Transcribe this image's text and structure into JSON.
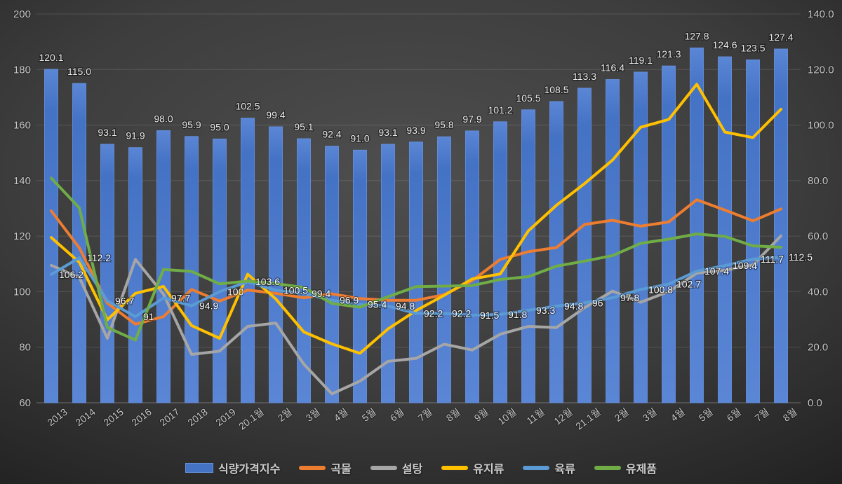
{
  "chart_data": {
    "type": "bar",
    "subtype": "combo-bar-line",
    "title": "",
    "grid": "horizontal",
    "legend_position": "bottom",
    "categories": [
      "2013",
      "2014",
      "2015",
      "2016",
      "2017",
      "2018",
      "2019",
      "20.1월",
      "2월",
      "3월",
      "4월",
      "5월",
      "6월",
      "7월",
      "8월",
      "9월",
      "10월",
      "11월",
      "12월",
      "21.1월",
      "2월",
      "3월",
      "4월",
      "5월",
      "6월",
      "7월",
      "8월"
    ],
    "left_axis": {
      "min": 60,
      "max": 200,
      "step": 20,
      "ticks": [
        "200",
        "180",
        "160",
        "140",
        "120",
        "100",
        "80",
        "60"
      ]
    },
    "right_axis": {
      "min": 0,
      "max": 140,
      "step": 20,
      "ticks": [
        "140.0",
        "120.0",
        "100.0",
        "80.0",
        "60.0",
        "40.0",
        "20.0",
        "0.0"
      ]
    },
    "series": [
      {
        "id": "food-price-index",
        "name": "식량가격지수",
        "kind": "bar",
        "axis": "right",
        "color": "#4472C4",
        "color_light": "#5b86d6",
        "edge": "#6490dd",
        "values": [
          120.1,
          115.0,
          93.1,
          91.9,
          98.0,
          95.9,
          95.0,
          102.5,
          99.4,
          95.1,
          92.4,
          91.0,
          93.1,
          93.9,
          95.8,
          97.9,
          101.2,
          105.5,
          108.5,
          113.3,
          116.4,
          119.1,
          121.3,
          127.8,
          124.6,
          123.5,
          127.4
        ],
        "labels": [
          "120.1",
          "115.0",
          "93.1",
          "91.9",
          "98.0",
          "95.9",
          "95.0",
          "102.5",
          "99.4",
          "95.1",
          "92.4",
          "91.0",
          "93.1",
          "93.9",
          "95.8",
          "97.9",
          "101.2",
          "105.5",
          "108.5",
          "113.3",
          "116.4",
          "119.1",
          "121.3",
          "127.8",
          "124.6",
          "123.5",
          "127.4"
        ]
      },
      {
        "id": "grains",
        "name": "곡물",
        "kind": "line",
        "axis": "left",
        "color": "#ED7D31",
        "values": [
          129.1,
          115.8,
          95.9,
          88.3,
          91.0,
          100.8,
          96.6,
          100.6,
          99.4,
          97.8,
          99.2,
          97.5,
          96.9,
          96.9,
          98.9,
          104.0,
          111.6,
          114.4,
          115.9,
          124.2,
          125.7,
          123.6,
          125.1,
          133.1,
          129.4,
          125.5,
          129.8
        ]
      },
      {
        "id": "sugar",
        "name": "설탕",
        "kind": "line",
        "axis": "left",
        "color": "#A6A6A6",
        "values": [
          109.5,
          105.2,
          83.2,
          111.6,
          99.1,
          77.4,
          78.6,
          87.5,
          88.7,
          73.9,
          63.2,
          67.8,
          74.9,
          76.0,
          81.1,
          79.0,
          84.7,
          87.5,
          87.1,
          94.2,
          100.2,
          96.2,
          100.0,
          106.7,
          107.7,
          109.6,
          120.1
        ]
      },
      {
        "id": "oils",
        "name": "유지류",
        "kind": "line",
        "axis": "left",
        "color": "#FFC000",
        "values": [
          119.5,
          110.6,
          89.9,
          99.4,
          101.9,
          87.8,
          83.2,
          106.3,
          97.4,
          85.5,
          81.2,
          77.8,
          86.6,
          93.2,
          98.7,
          104.6,
          106.4,
          121.9,
          131.1,
          138.9,
          147.4,
          159.2,
          162.0,
          174.7,
          157.5,
          155.5,
          165.7
        ]
      },
      {
        "id": "meat",
        "name": "육류",
        "kind": "line",
        "axis": "left",
        "color": "#5B9BD5",
        "values": [
          106.2,
          112.2,
          96.7,
          91,
          97.7,
          94.9,
          100,
          103.6,
          100.5,
          99.4,
          96.9,
          95.4,
          94.8,
          92.2,
          92.2,
          91.5,
          91.8,
          93.3,
          94.8,
          96,
          97.8,
          100.8,
          102.7,
          107.4,
          109.4,
          111.7,
          112.5
        ],
        "labels": [
          "106.2",
          "112.2",
          "96.7",
          "91",
          "97.7",
          "94.9",
          "100",
          "103.6",
          "100.5",
          "99.4",
          "96.9",
          "95.4",
          "94.8",
          "92.2",
          "92.2",
          "91.5",
          "91.8",
          "93.3",
          "94.8",
          "96",
          "97.8",
          "100.8",
          "102.7",
          "107.4",
          "109.4",
          "111.7",
          "112.5"
        ]
      },
      {
        "id": "dairy",
        "name": "유제품",
        "kind": "line",
        "axis": "left",
        "color": "#70AD47",
        "values": [
          140.9,
          130.2,
          87.1,
          82.6,
          108.0,
          107.3,
          102.8,
          103.8,
          102.9,
          101.5,
          95.8,
          94.4,
          98.2,
          101.8,
          102.0,
          102.2,
          104.4,
          105.4,
          109.2,
          111.0,
          113.0,
          117.4,
          118.9,
          120.8,
          119.9,
          116.5,
          116.0
        ]
      }
    ]
  }
}
